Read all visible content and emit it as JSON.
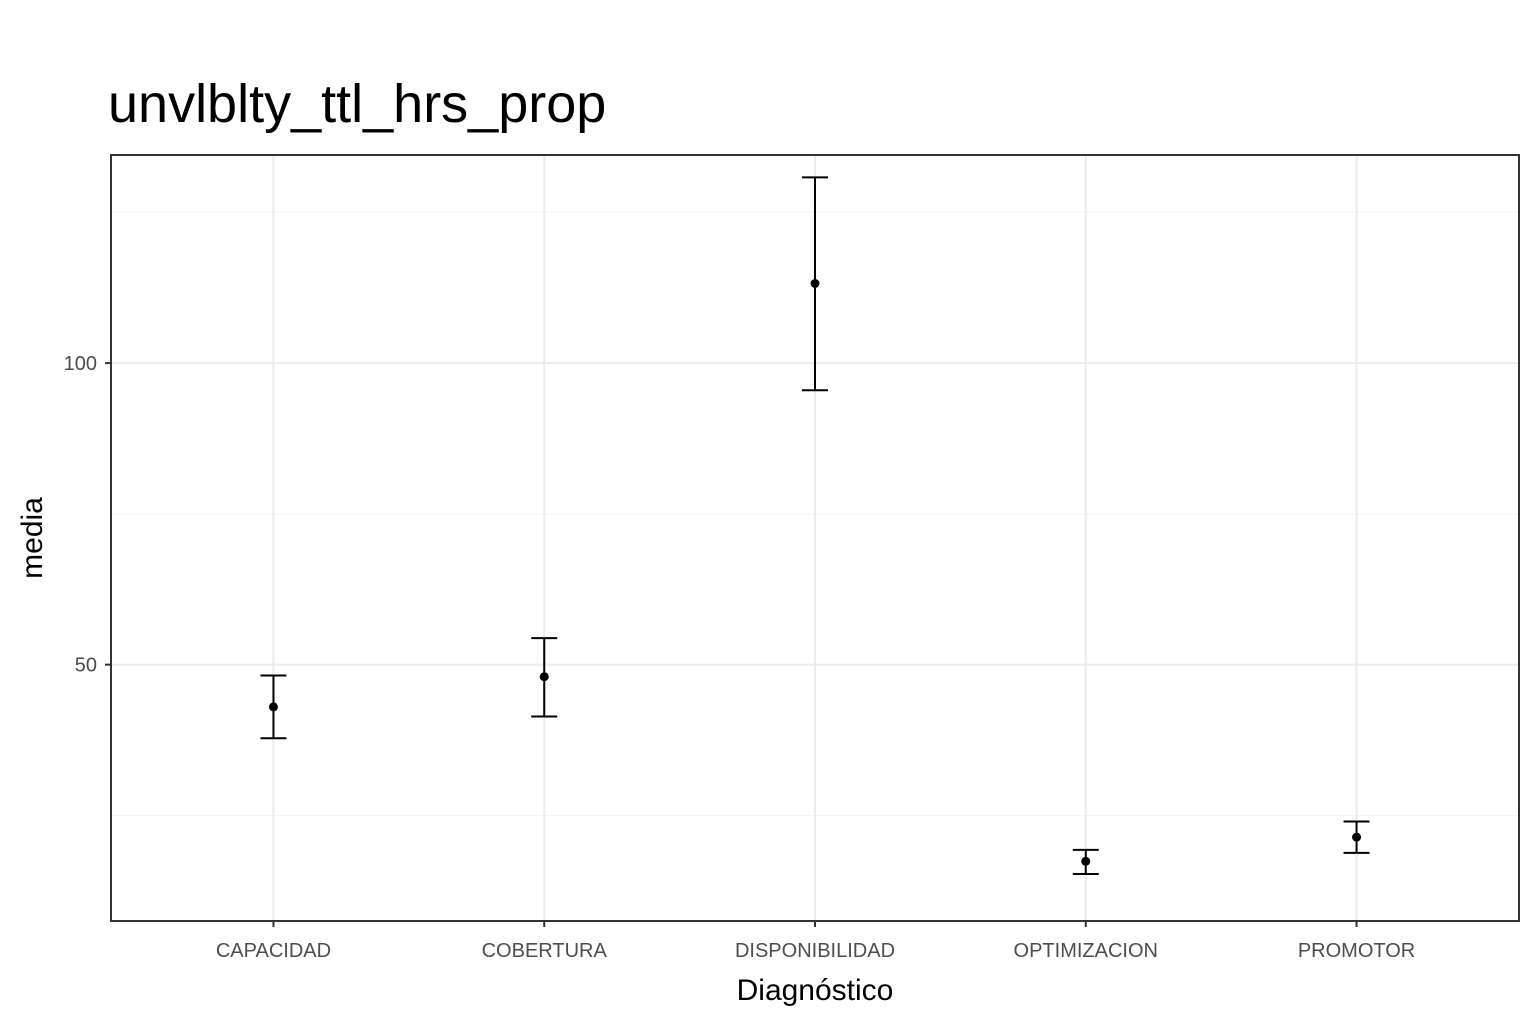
{
  "chart_data": {
    "type": "errorbar",
    "title": "unvlblty_ttl_hrs_prop",
    "xlabel": "Diagnóstico",
    "ylabel": "media",
    "categories": [
      "CAPACIDAD",
      "COBERTURA",
      "DISPONIBILIDAD",
      "OPTIMIZACION",
      "PROMOTOR"
    ],
    "series": [
      {
        "mean": [
          43.0,
          48.0,
          113.2,
          17.4,
          21.4
        ],
        "lower": [
          37.8,
          41.4,
          95.5,
          15.3,
          18.8
        ],
        "upper": [
          48.2,
          54.4,
          130.8,
          19.3,
          24.0
        ]
      }
    ],
    "yticks": [
      50,
      100
    ],
    "ylim": [
      7.5,
      134.5
    ],
    "grid": true,
    "legend": "none"
  }
}
